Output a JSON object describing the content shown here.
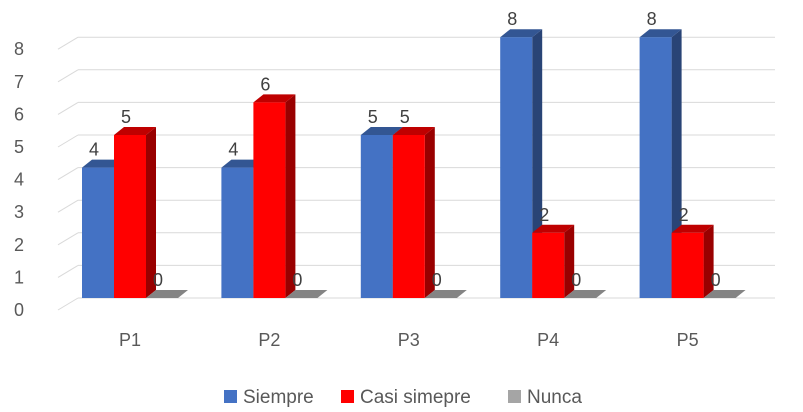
{
  "chart_data": {
    "type": "bar",
    "title": "",
    "xlabel": "",
    "ylabel": "",
    "ylim": [
      0,
      8
    ],
    "yticks": [
      0,
      1,
      2,
      3,
      4,
      5,
      6,
      7,
      8
    ],
    "grid": true,
    "legend_position": "bottom",
    "categories": [
      "P1",
      "P2",
      "P3",
      "P4",
      "P5"
    ],
    "series": [
      {
        "name": "Siempre",
        "color": "#4472C4",
        "values": [
          4,
          4,
          5,
          8,
          8
        ]
      },
      {
        "name": "Casi simepre",
        "color": "#FF0000",
        "values": [
          5,
          6,
          5,
          2,
          2
        ]
      },
      {
        "name": "Nunca",
        "color": "#A5A5A5",
        "values": [
          0,
          0,
          0,
          0,
          0
        ]
      }
    ]
  }
}
